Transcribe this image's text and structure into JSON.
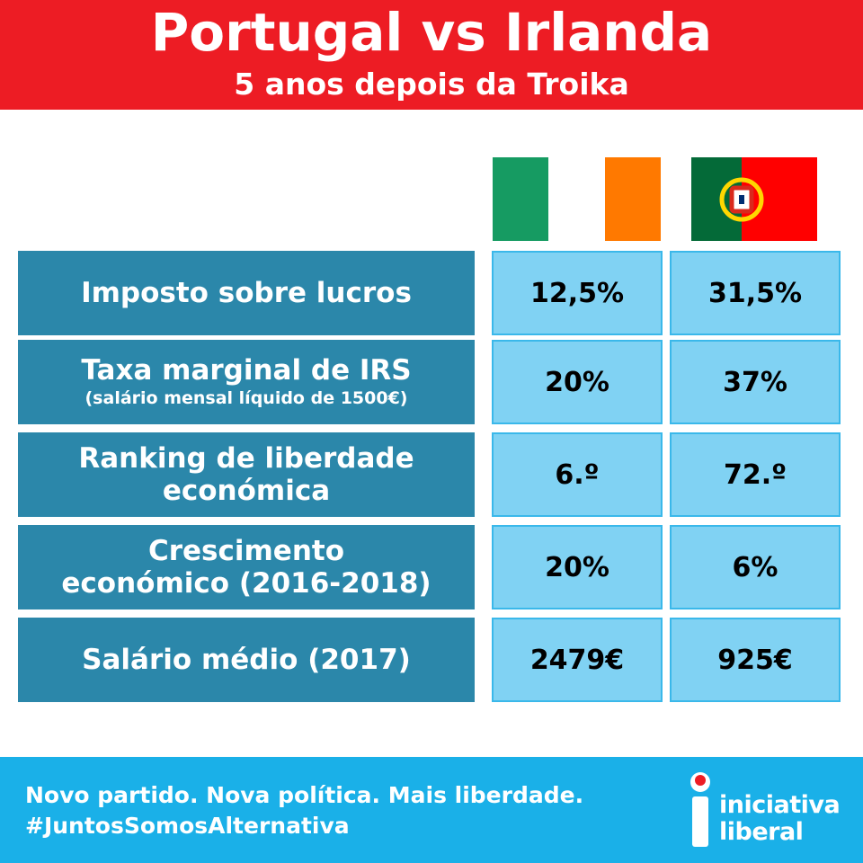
{
  "header": {
    "title": "Portugal vs Irlanda",
    "subtitle": "5 anos depois da Troika"
  },
  "table": {
    "rows": [
      {
        "label": [
          "Imposto sobre lucros"
        ],
        "note": null,
        "values": [
          "12,5%",
          "31,5%"
        ]
      },
      {
        "label": [
          "Taxa marginal de IRS"
        ],
        "note": "(salário mensal líquido de 1500€)",
        "values": [
          "20%",
          "37%"
        ]
      },
      {
        "label": [
          "Ranking de liberdade",
          "económica"
        ],
        "note": null,
        "values": [
          "6.º",
          "72.º"
        ]
      },
      {
        "label": [
          "Crescimento",
          "económico (2016-2018)"
        ],
        "note": null,
        "values": [
          "20%",
          "6%"
        ]
      },
      {
        "label": [
          "Salário médio (2017)"
        ],
        "note": null,
        "values": [
          "2479€",
          "925€"
        ]
      }
    ]
  },
  "footer": {
    "lines": [
      "Novo partido. Nova política. Mais liberdade.",
      "#JuntosSomosAlternativa"
    ],
    "logo": [
      "iniciativa",
      "liberal"
    ]
  }
}
